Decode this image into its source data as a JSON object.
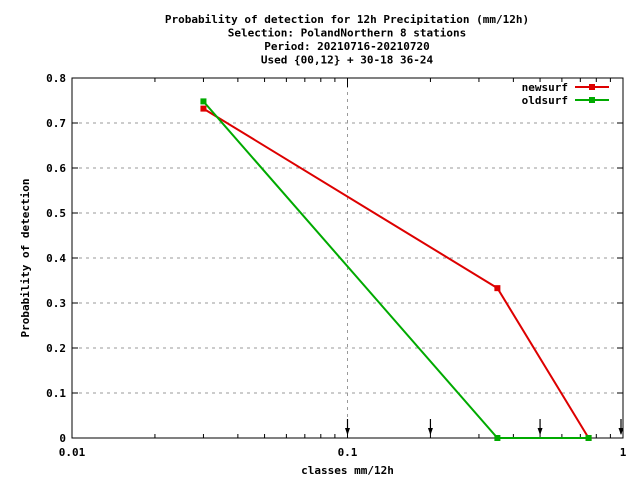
{
  "chart_data": {
    "type": "line",
    "title_lines": [
      "Probability of detection  for 12h Precipitation (mm/12h)",
      "Selection: PolandNorthern      8 stations",
      "Period: 20210716-20210720",
      "Used {00,12} + 30-18 36-24"
    ],
    "xlabel": "classes mm/12h",
    "ylabel": "Probability of detection",
    "x_scale": "log",
    "xlim": [
      0.01,
      1
    ],
    "ylim": [
      0,
      0.8
    ],
    "x_ticks": [
      {
        "value": 0.01,
        "label": "0.01"
      },
      {
        "value": 0.1,
        "label": "0.1"
      },
      {
        "value": 1,
        "label": "1"
      }
    ],
    "y_ticks": [
      {
        "value": 0,
        "label": "0"
      },
      {
        "value": 0.1,
        "label": "0.1"
      },
      {
        "value": 0.2,
        "label": "0.2"
      },
      {
        "value": 0.3,
        "label": "0.3"
      },
      {
        "value": 0.4,
        "label": "0.4"
      },
      {
        "value": 0.5,
        "label": "0.5"
      },
      {
        "value": 0.6,
        "label": "0.6"
      },
      {
        "value": 0.7,
        "label": "0.7"
      },
      {
        "value": 0.8,
        "label": "0.8"
      }
    ],
    "grid": true,
    "legend_position": "top-right",
    "class_markers": [
      0.1,
      0.2,
      0.5,
      1.0
    ],
    "series": [
      {
        "name": "newsurf",
        "color": "#dd0000",
        "x": [
          0.03,
          0.35,
          0.75
        ],
        "y": [
          0.732,
          0.333,
          0.0
        ]
      },
      {
        "name": "oldsurf",
        "color": "#00aa00",
        "x": [
          0.03,
          0.35,
          0.75
        ],
        "y": [
          0.748,
          0.0,
          0.0
        ]
      }
    ]
  }
}
